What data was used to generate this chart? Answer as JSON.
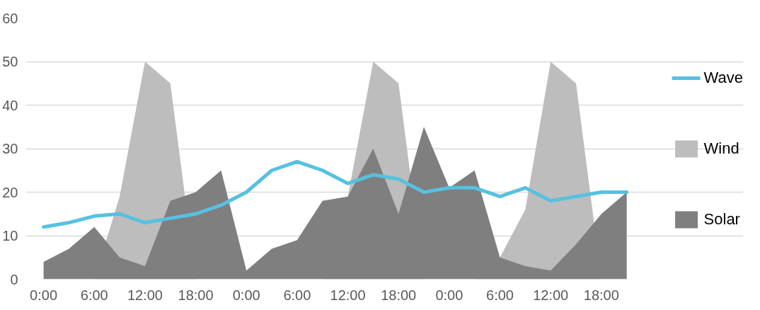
{
  "chart_data": {
    "type": "area",
    "categories": [
      "0:00",
      null,
      "6:00",
      null,
      "12:00",
      null,
      "18:00",
      null,
      "0:00",
      null,
      "6:00",
      null,
      "12:00",
      null,
      "18:00",
      null,
      "0:00",
      null,
      "6:00",
      null,
      "12:00",
      null,
      "18:00",
      null
    ],
    "series": [
      {
        "name": "Wave",
        "type": "line",
        "color": "#56c1e1",
        "values": [
          12,
          13,
          14.5,
          15,
          13,
          14,
          15,
          17,
          20,
          25,
          27,
          25,
          22,
          24,
          23,
          20,
          21,
          21,
          19,
          21,
          18,
          19,
          20,
          20
        ]
      },
      {
        "name": "Wind",
        "color": "#bdbdbd",
        "values": [
          0,
          0,
          0,
          19,
          50,
          45,
          0,
          0,
          0,
          0,
          0,
          0,
          19,
          50,
          45,
          0,
          0,
          0,
          5,
          16,
          50,
          45,
          0,
          0
        ]
      },
      {
        "name": "Solar",
        "color": "#7f7f7f",
        "values": [
          4,
          7,
          12,
          5,
          3,
          18,
          20,
          25,
          2,
          7,
          9,
          18,
          19,
          30,
          15,
          35,
          21,
          25,
          5,
          3,
          2,
          8,
          15,
          20
        ]
      }
    ],
    "ylim": [
      0,
      60
    ],
    "yticks": [
      0,
      10,
      20,
      30,
      40,
      50,
      60
    ],
    "grid": "y",
    "legend": "right"
  }
}
